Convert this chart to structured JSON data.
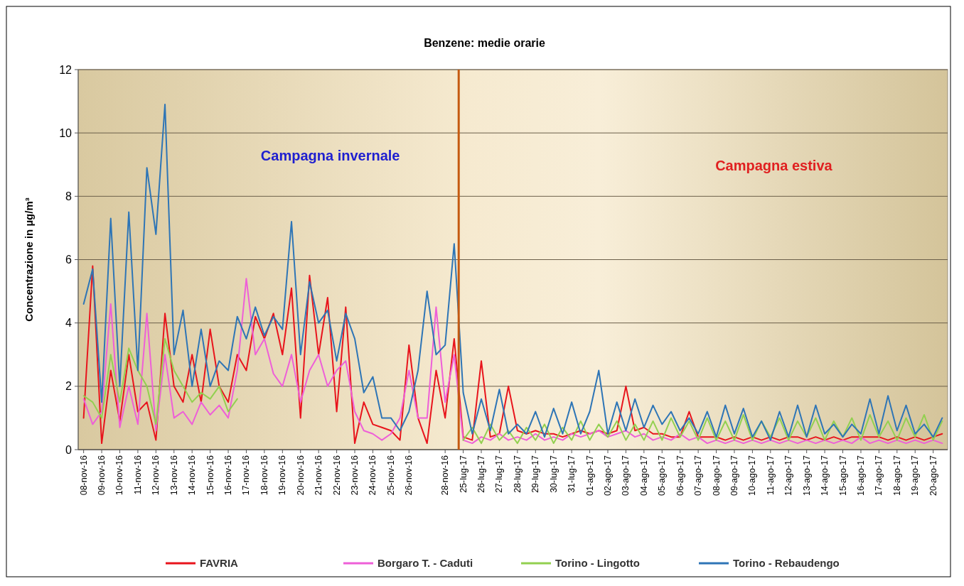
{
  "chart_data": {
    "type": "line",
    "title": "Benzene: medie orarie",
    "ylabel": "Concentrazione in µg/m³",
    "annotations": [
      "Campagna invernale",
      "Campagna estiva"
    ],
    "categories": [
      "08-nov-16",
      null,
      "09-nov-16",
      null,
      "10-nov-16",
      null,
      "11-nov-16",
      null,
      "12-nov-16",
      null,
      "13-nov-16",
      null,
      "14-nov-16",
      null,
      "15-nov-16",
      null,
      "16-nov-16",
      null,
      "17-nov-16",
      null,
      "18-nov-16",
      null,
      "19-nov-16",
      null,
      "20-nov-16",
      null,
      "21-nov-16",
      null,
      "22-nov-16",
      null,
      "23-nov-16",
      null,
      "24-nov-16",
      null,
      "25-nov-16",
      null,
      "26-nov-16",
      null,
      null,
      null,
      "28-nov-16",
      null,
      "25-lug-17",
      null,
      "26-lug-17",
      null,
      "27-lug-17",
      null,
      "28-lug-17",
      null,
      "29-lug-17",
      null,
      "30-lug-17",
      null,
      "31-lug-17",
      null,
      "01-ago-17",
      null,
      "02-ago-17",
      null,
      "03-ago-17",
      null,
      "04-ago-17",
      null,
      "05-ago-17",
      null,
      "06-ago-17",
      null,
      "07-ago-17",
      null,
      "08-ago-17",
      null,
      "09-ago-17",
      null,
      "10-ago-17",
      null,
      "11-ago-17",
      null,
      "12-ago-17",
      null,
      "13-ago-17",
      null,
      "14-ago-17",
      null,
      "15-ago-17",
      null,
      "16-ago-17",
      null,
      "17-ago-17",
      null,
      "18-ago-17",
      null,
      "19-ago-17",
      null,
      "20-ago-17",
      null
    ],
    "series": [
      {
        "name": "FAVRIA",
        "color": "#e8141c",
        "values": [
          1.0,
          5.8,
          0.2,
          2.5,
          0.9,
          3.0,
          1.2,
          1.5,
          0.3,
          4.3,
          2.0,
          1.5,
          3.0,
          1.5,
          3.8,
          2.0,
          1.5,
          3.0,
          2.5,
          4.2,
          3.5,
          4.3,
          3.0,
          5.1,
          1.0,
          5.5,
          3.0,
          4.8,
          1.2,
          4.5,
          0.2,
          1.5,
          0.8,
          0.7,
          0.6,
          0.3,
          3.3,
          1.0,
          0.2,
          2.5,
          1.0,
          3.5,
          0.4,
          0.3,
          2.8,
          0.4,
          0.5,
          2.0,
          0.6,
          0.5,
          0.6,
          0.5,
          0.5,
          0.4,
          0.5,
          0.6,
          0.5,
          0.6,
          0.5,
          0.6,
          2.0,
          0.6,
          0.7,
          0.5,
          0.5,
          0.4,
          0.4,
          1.2,
          0.4,
          0.4,
          0.4,
          0.3,
          0.4,
          0.3,
          0.4,
          0.3,
          0.4,
          0.3,
          0.4,
          0.4,
          0.3,
          0.4,
          0.3,
          0.4,
          0.3,
          0.4,
          0.4,
          0.4,
          0.4,
          0.3,
          0.4,
          0.3,
          0.4,
          0.3,
          0.4,
          0.5
        ]
      },
      {
        "name": "Borgaro T. - Caduti",
        "color": "#ee5fd8",
        "values": [
          1.6,
          0.8,
          1.2,
          4.6,
          0.7,
          2.0,
          0.8,
          4.3,
          0.6,
          3.0,
          1.0,
          1.2,
          0.8,
          1.5,
          1.1,
          1.4,
          1.0,
          2.5,
          5.4,
          3.0,
          3.5,
          2.4,
          2.0,
          3.0,
          1.5,
          2.5,
          3.0,
          2.0,
          2.5,
          2.8,
          1.2,
          0.6,
          0.5,
          0.3,
          0.5,
          1.0,
          2.5,
          1.0,
          1.0,
          4.5,
          1.5,
          3.0,
          0.3,
          0.2,
          0.4,
          0.3,
          0.5,
          0.3,
          0.4,
          0.3,
          0.5,
          0.3,
          0.4,
          0.3,
          0.5,
          0.4,
          0.5,
          0.6,
          0.4,
          0.5,
          0.6,
          0.4,
          0.5,
          0.3,
          0.4,
          0.3,
          0.5,
          0.3,
          0.4,
          0.2,
          0.3,
          0.2,
          0.3,
          0.2,
          0.3,
          0.2,
          0.3,
          0.2,
          0.3,
          0.2,
          0.3,
          0.2,
          0.3,
          0.2,
          0.3,
          0.2,
          0.4,
          0.2,
          0.3,
          0.2,
          0.3,
          0.2,
          0.3,
          0.2,
          0.3,
          0.2
        ]
      },
      {
        "name": "Torino - Lingotto",
        "color": "#92d050",
        "values": [
          1.7,
          1.5,
          1.0,
          3.0,
          1.5,
          3.2,
          2.5,
          2.0,
          0.8,
          3.5,
          2.5,
          2.0,
          1.5,
          1.8,
          1.6,
          2.0,
          1.2,
          1.6,
          null,
          null,
          null,
          null,
          null,
          null,
          null,
          null,
          null,
          null,
          null,
          null,
          null,
          null,
          null,
          null,
          null,
          null,
          null,
          null,
          null,
          null,
          null,
          null,
          0.3,
          0.7,
          0.2,
          0.8,
          0.3,
          0.6,
          0.2,
          0.7,
          0.3,
          0.8,
          0.2,
          0.7,
          0.3,
          0.9,
          0.3,
          0.8,
          0.4,
          0.9,
          0.3,
          0.8,
          0.3,
          0.9,
          0.3,
          1.0,
          0.4,
          0.9,
          0.3,
          1.0,
          0.3,
          0.9,
          0.3,
          1.1,
          0.3,
          0.9,
          0.4,
          1.0,
          0.3,
          0.9,
          0.4,
          1.0,
          0.3,
          0.9,
          0.4,
          1.0,
          0.3,
          1.1,
          0.4,
          0.9,
          0.3,
          1.0,
          0.4,
          1.1,
          0.3,
          0.9
        ]
      },
      {
        "name": "Torino - Rebaudengo",
        "color": "#2e75b6",
        "values": [
          4.6,
          5.7,
          1.5,
          7.3,
          2.0,
          7.5,
          2.5,
          8.9,
          6.8,
          10.9,
          3.0,
          4.4,
          2.0,
          3.8,
          2.0,
          2.8,
          2.5,
          4.2,
          3.5,
          4.5,
          3.6,
          4.2,
          3.8,
          7.2,
          3.0,
          5.3,
          4.0,
          4.4,
          2.8,
          4.3,
          3.5,
          1.8,
          2.3,
          1.0,
          1.0,
          0.6,
          1.2,
          2.5,
          5.0,
          3.0,
          3.3,
          6.5,
          1.8,
          0.5,
          1.6,
          0.6,
          1.9,
          0.5,
          0.8,
          0.5,
          1.2,
          0.4,
          1.3,
          0.5,
          1.5,
          0.5,
          1.2,
          2.5,
          0.5,
          1.5,
          0.6,
          1.6,
          0.7,
          1.4,
          0.8,
          1.2,
          0.6,
          1.0,
          0.5,
          1.2,
          0.4,
          1.4,
          0.5,
          1.3,
          0.4,
          0.9,
          0.3,
          1.2,
          0.4,
          1.4,
          0.4,
          1.4,
          0.5,
          0.8,
          0.4,
          0.8,
          0.5,
          1.6,
          0.5,
          1.7,
          0.6,
          1.4,
          0.5,
          0.8,
          0.4,
          1.0
        ]
      }
    ],
    "ylim": [
      0,
      12
    ],
    "yticks": [
      0,
      2,
      4,
      6,
      8,
      10,
      12
    ],
    "grid": "y",
    "legend": "bottom"
  }
}
